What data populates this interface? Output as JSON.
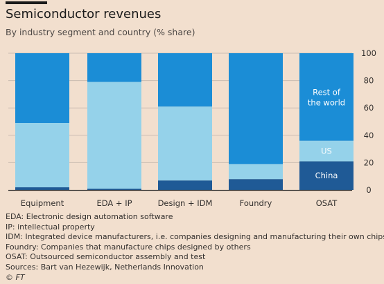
{
  "header": {
    "title": "Semiconductor revenues",
    "subtitle": "By industry segment and country (% share)"
  },
  "chart_data": {
    "type": "bar",
    "stacked": true,
    "title": "Semiconductor revenues",
    "subtitle": "By industry segment and country (% share)",
    "categories": [
      "Equipment",
      "EDA + IP",
      "Design + IDM",
      "Foundry",
      "OSAT"
    ],
    "series": [
      {
        "name": "China",
        "values": [
          2,
          1,
          7,
          8,
          21
        ]
      },
      {
        "name": "US",
        "values": [
          47,
          78,
          54,
          11,
          15
        ]
      },
      {
        "name": "Rest of the world",
        "values": [
          51,
          21,
          39,
          81,
          64
        ]
      }
    ],
    "ylim": [
      0,
      100
    ],
    "yticks": [
      0,
      20,
      40,
      60,
      80,
      100
    ],
    "ytick_labels": [
      "0",
      "20",
      "40",
      "60",
      "80",
      "100"
    ],
    "y_axis_side": "right",
    "grid": true,
    "legend": "inline labels on OSAT bar",
    "inline_labels": {
      "rest_of_world": [
        "Rest of",
        "the world"
      ],
      "us": "US",
      "china": "China"
    },
    "colors": {
      "China": "#1f5a96",
      "US": "#95d2ea",
      "Rest of the world": "#1b8dd6"
    }
  },
  "notes": [
    "EDA: Electronic design automation software",
    "IP: intellectual property",
    "IDM: Integrated device manufacturers, i.e. companies designing and manufacturing their own chips",
    "Foundry: Companies that manufacture chips designed by others",
    "OSAT: Outsourced semiconductor assembly and test",
    "Sources: Bart van Hezewijk, Netherlands Innovation"
  ],
  "footer": {
    "copyright": "©",
    "logo": "FT"
  },
  "colors": {
    "background": "#f2dfce",
    "grid": "#c9bcb1",
    "axis": "#3d3a38"
  }
}
